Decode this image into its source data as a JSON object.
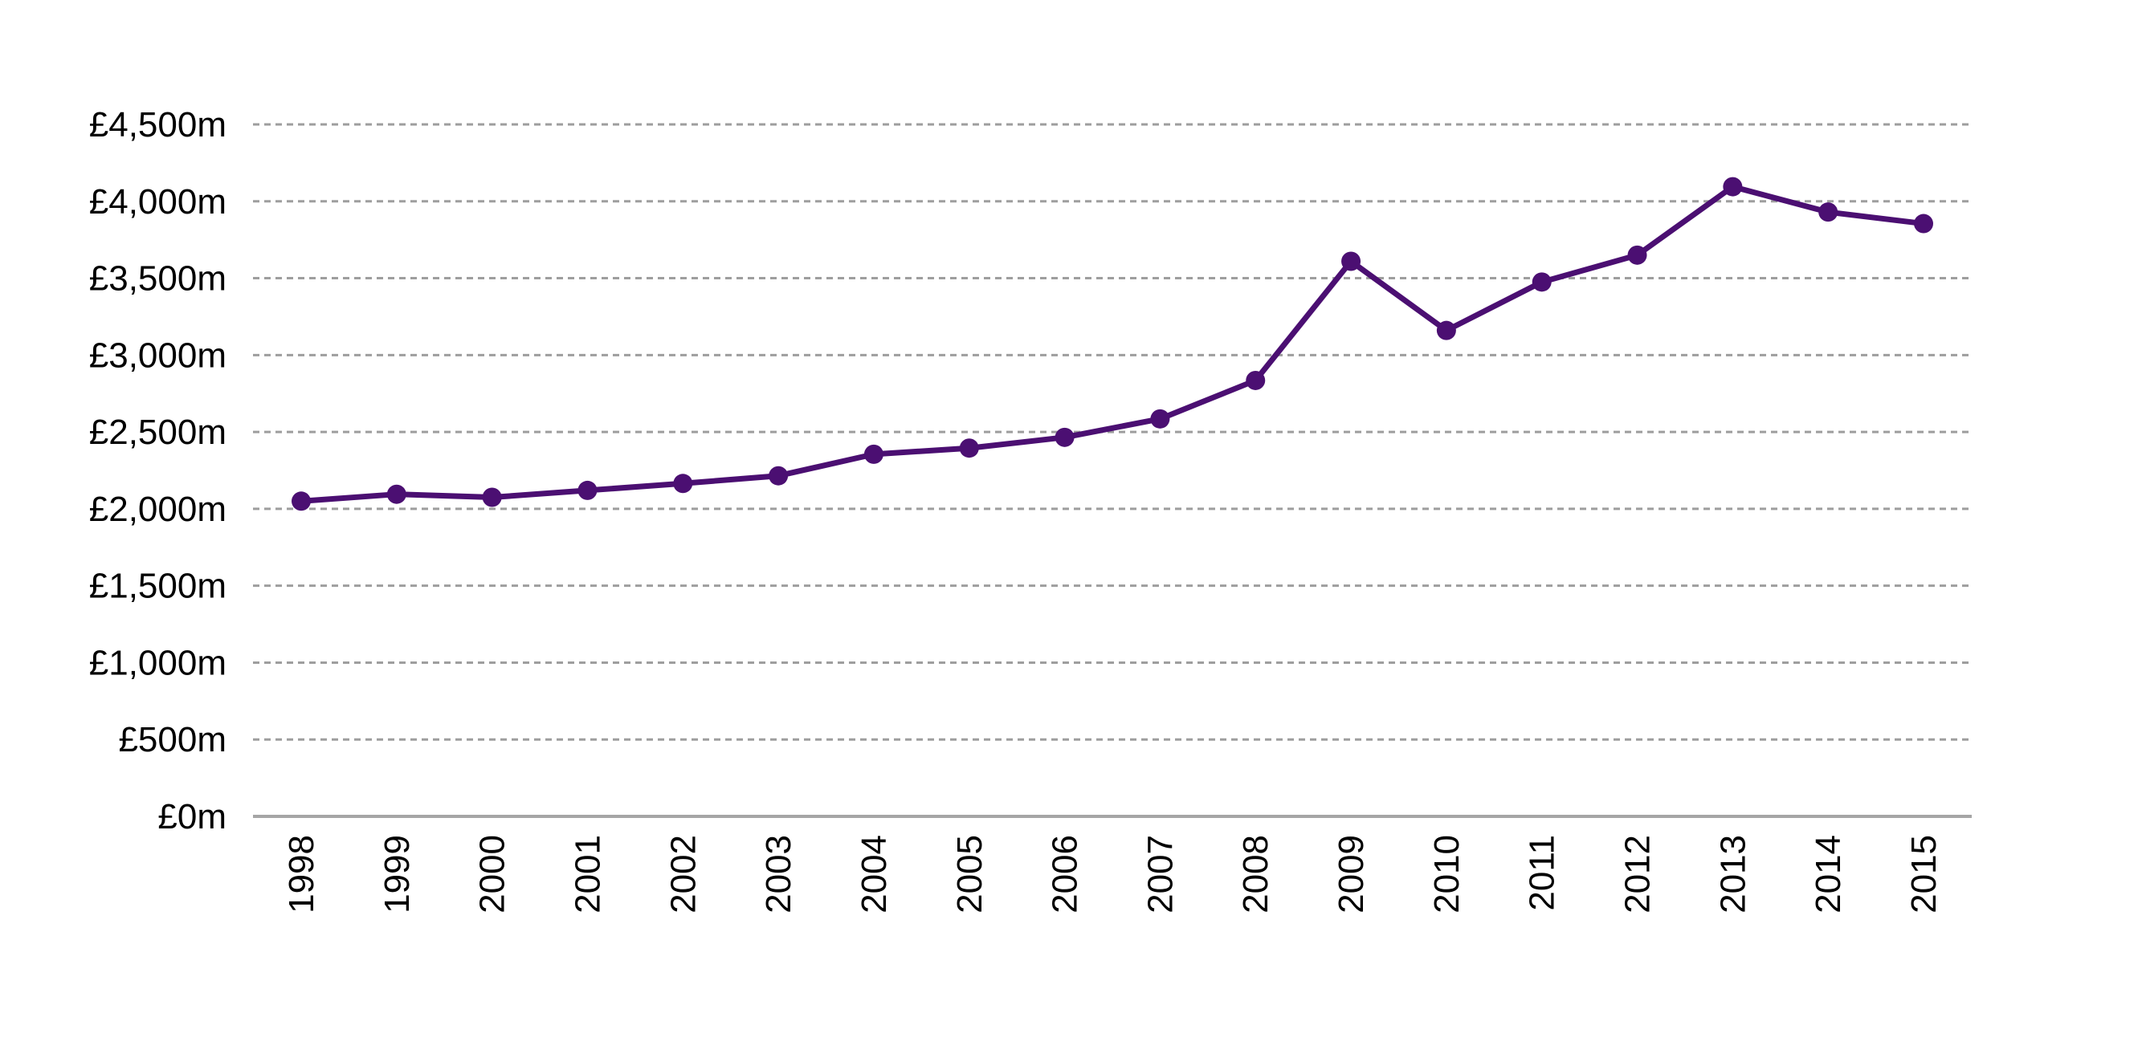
{
  "chart_data": {
    "type": "line",
    "title": "",
    "xlabel": "",
    "ylabel": "",
    "categories": [
      "1998",
      "1999",
      "2000",
      "2001",
      "2002",
      "2003",
      "2004",
      "2005",
      "2006",
      "2007",
      "2008",
      "2009",
      "2010",
      "2011",
      "2012",
      "2013",
      "2014",
      "2015"
    ],
    "series": [
      {
        "values": [
          2050,
          2095,
          2075,
          2120,
          2165,
          2215,
          2355,
          2395,
          2465,
          2585,
          2835,
          3610,
          3160,
          3475,
          3650,
          4095,
          3930,
          3855
        ]
      }
    ],
    "ylim": [
      0,
      4500
    ],
    "yticks": [
      0,
      500,
      1000,
      1500,
      2000,
      2500,
      3000,
      3500,
      4000,
      4500
    ],
    "ytick_labels": [
      "£0m",
      "£500m",
      "£1,000m",
      "£1,500m",
      "£2,000m",
      "£2,500m",
      "£3,000m",
      "£3,500m",
      "£4,000m",
      "£4,500m"
    ],
    "grid": "horizontal-dashed",
    "legend": "none",
    "colors": {
      "series": "#4b0f72",
      "grid": "#9e9e9e",
      "axis": "#a6a6a6",
      "text": "#000000"
    }
  }
}
